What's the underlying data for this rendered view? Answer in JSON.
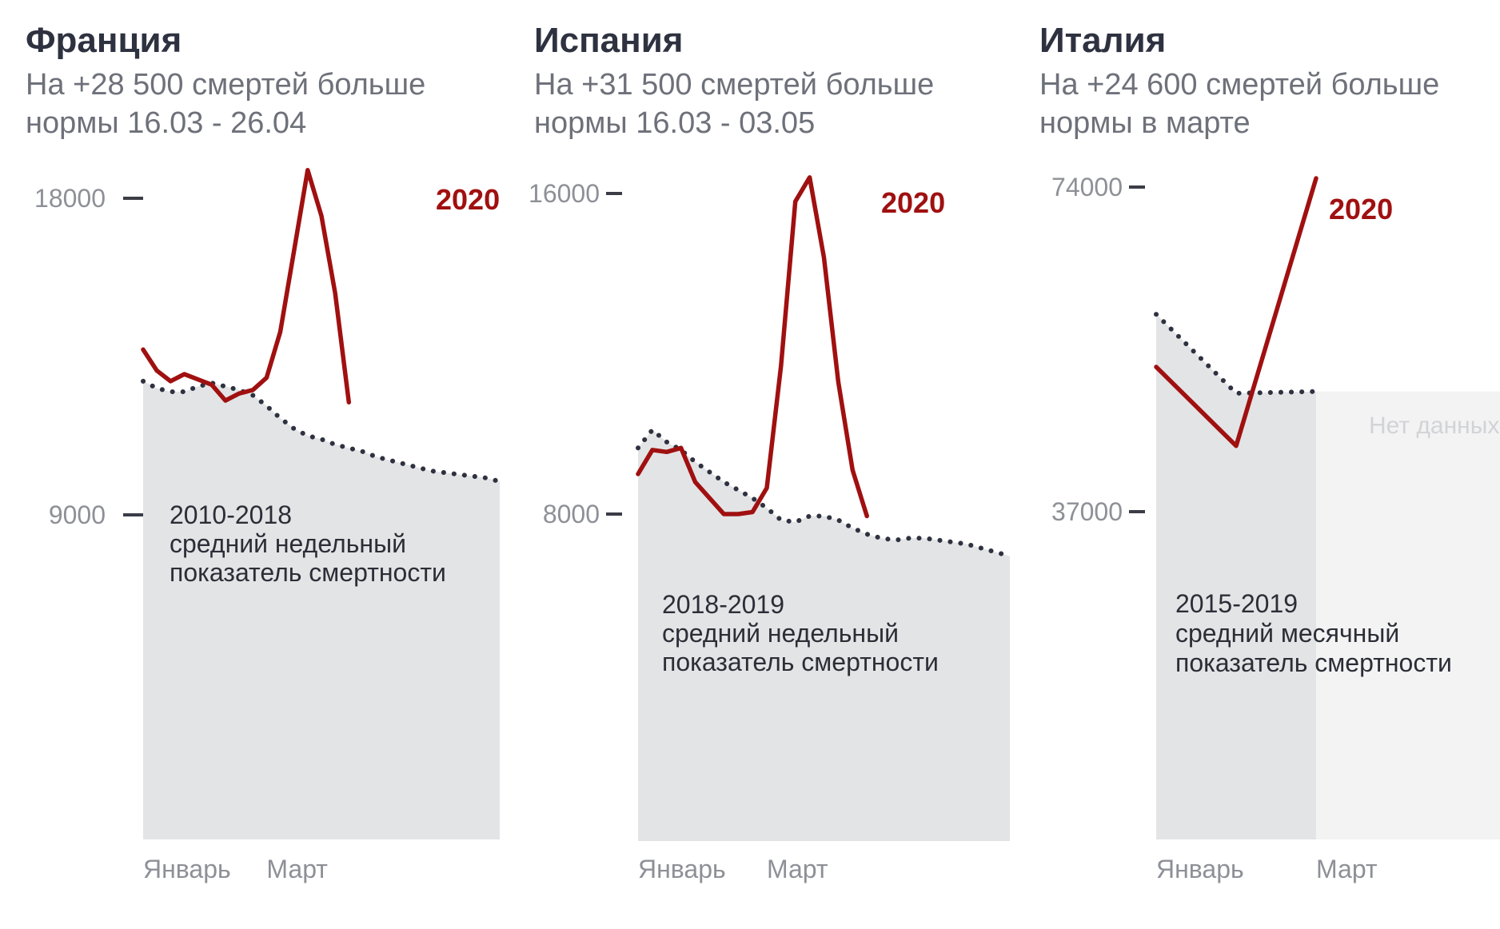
{
  "colors": {
    "current_line": "#a01010",
    "baseline_fill": "#e3e4e6",
    "baseline_dots": "#2e3240",
    "nodata_fill": "#f3f3f4",
    "title": "#2e3240",
    "subtitle": "#6e717a",
    "axis_text": "#8e9097"
  },
  "panels": [
    {
      "title": "Франция",
      "subtitle_lines": [
        "На +28 500 смертей больше",
        "нормы 16.03 - 26.04"
      ]
    },
    {
      "title": "Испания",
      "subtitle_lines": [
        "На +31 500 смертей больше",
        "нормы 16.03 - 03.05"
      ]
    },
    {
      "title": "Италия",
      "subtitle_lines": [
        "На +24 600 смертей больше",
        "нормы в марте"
      ]
    }
  ],
  "chart_data": [
    {
      "type": "line",
      "title": "Франция",
      "x_tick_labels": [
        "Январь",
        "Март"
      ],
      "x_tick_positions": [
        1,
        10
      ],
      "yticks": [
        9000,
        18000
      ],
      "ytick_labels": [
        "9000",
        "18000"
      ],
      "ylim": [
        0,
        18800
      ],
      "xlim": [
        1,
        27
      ],
      "grid": false,
      "series": [
        {
          "name": "2020",
          "style": "solid",
          "x": [
            1,
            2,
            3,
            4,
            5,
            6,
            7,
            8,
            9,
            10,
            11,
            12,
            13,
            14,
            15,
            16,
            17,
            18,
            19
          ],
          "values": [
            13700,
            13100,
            12800,
            13000,
            12850,
            12700,
            12250,
            12450,
            12550,
            12900,
            14200,
            16500,
            18800,
            17500,
            15300,
            12200,
            null,
            null,
            null
          ]
        },
        {
          "name": "2010-2018",
          "style": "dotted-area",
          "x": [
            1,
            2,
            3,
            4,
            5,
            6,
            7,
            8,
            9,
            10,
            11,
            12,
            13,
            14,
            15,
            16,
            17,
            18,
            19,
            20,
            21,
            22,
            23,
            24,
            25,
            26,
            27
          ],
          "values": [
            12800,
            12600,
            12500,
            12500,
            12650,
            12750,
            12650,
            12550,
            12400,
            12100,
            11750,
            11450,
            11250,
            11150,
            11000,
            10900,
            10800,
            10650,
            10550,
            10450,
            10350,
            10250,
            10200,
            10150,
            10100,
            10050,
            9950
          ]
        }
      ],
      "series_label": "2020",
      "area_label_lines": [
        "2010-2018",
        "средний недельный",
        "показатель смертности"
      ]
    },
    {
      "type": "line",
      "title": "Испания",
      "x_tick_labels": [
        "Январь",
        "Март"
      ],
      "x_tick_positions": [
        1,
        10
      ],
      "yticks": [
        8000,
        16000
      ],
      "ytick_labels": [
        "8000",
        "16000"
      ],
      "ylim": [
        0,
        16400
      ],
      "xlim": [
        1,
        27
      ],
      "grid": false,
      "series": [
        {
          "name": "2020",
          "style": "solid",
          "x": [
            1,
            2,
            3,
            4,
            5,
            6,
            7,
            8,
            9,
            10,
            11,
            12,
            13,
            14,
            15,
            16,
            17,
            18,
            19,
            20
          ],
          "values": [
            9000,
            9600,
            9550,
            9650,
            8800,
            8400,
            8000,
            8000,
            8050,
            8650,
            11700,
            15800,
            16400,
            14400,
            11300,
            9100,
            7950,
            null,
            null,
            null
          ]
        },
        {
          "name": "2018-2019",
          "style": "dotted-area",
          "x": [
            1,
            2,
            3,
            4,
            5,
            6,
            7,
            8,
            9,
            10,
            11,
            12,
            13,
            14,
            15,
            16,
            17,
            18,
            19,
            20,
            21,
            22,
            23,
            24,
            25,
            26,
            27
          ],
          "values": [
            9650,
            10100,
            9800,
            9600,
            9300,
            9050,
            8800,
            8600,
            8400,
            8150,
            7850,
            7800,
            7950,
            7950,
            7850,
            7650,
            7500,
            7400,
            7350,
            7400,
            7400,
            7350,
            7300,
            7250,
            7150,
            7050,
            6950
          ]
        }
      ],
      "series_label": "2020",
      "area_label_lines": [
        "2018-2019",
        "средний недельный",
        "показатель смертности"
      ]
    },
    {
      "type": "line",
      "title": "Италия",
      "x_tick_labels": [
        "Январь",
        "Март"
      ],
      "x_tick_positions": [
        1,
        3
      ],
      "yticks": [
        37000,
        74000
      ],
      "ytick_labels": [
        "37000",
        "74000"
      ],
      "ylim": [
        0,
        75000
      ],
      "xlim": [
        1,
        3
      ],
      "grid": false,
      "series": [
        {
          "name": "2020",
          "style": "solid",
          "x": [
            1,
            2,
            3
          ],
          "values": [
            53500,
            44500,
            75000
          ]
        },
        {
          "name": "2015-2019",
          "style": "dotted-area",
          "x": [
            1,
            2,
            3
          ],
          "values": [
            59500,
            50500,
            50700
          ]
        }
      ],
      "series_label": "2020",
      "area_label_lines": [
        "2015-2019",
        "средний месячный",
        "показатель смертности"
      ],
      "no_data_label": "Нет данных"
    }
  ]
}
